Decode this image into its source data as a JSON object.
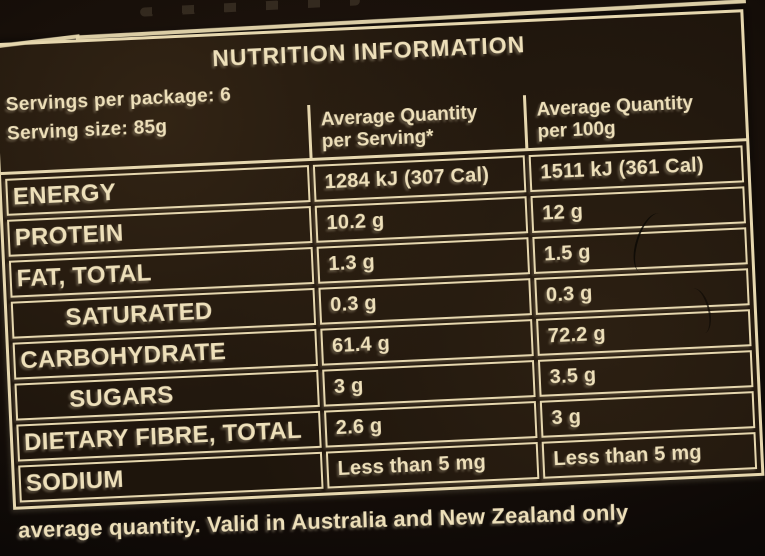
{
  "nutrition_label": {
    "title": "NUTRITION INFORMATION",
    "servings_per_package": "Servings per package: 6",
    "serving_size": "Serving size: 85g",
    "column_headers": {
      "per_serving_line1": "Average Quantity",
      "per_serving_line2": "per Serving*",
      "per_100g_line1": "Average Quantity",
      "per_100g_line2": "per 100g"
    },
    "rows": [
      {
        "nutrient": "ENERGY",
        "per_serving": "1284 kJ (307 Cal)",
        "per_100g": "1511 kJ (361 Cal)",
        "indent": false
      },
      {
        "nutrient": "PROTEIN",
        "per_serving": "10.2 g",
        "per_100g": "12 g",
        "indent": false
      },
      {
        "nutrient": "FAT, TOTAL",
        "per_serving": "1.3 g",
        "per_100g": "1.5 g",
        "indent": false
      },
      {
        "nutrient": "SATURATED",
        "per_serving": "0.3 g",
        "per_100g": "0.3 g",
        "indent": true
      },
      {
        "nutrient": "CARBOHYDRATE",
        "per_serving": "61.4 g",
        "per_100g": "72.2 g",
        "indent": false
      },
      {
        "nutrient": "SUGARS",
        "per_serving": "3 g",
        "per_100g": "3.5 g",
        "indent": true
      },
      {
        "nutrient": "DIETARY FIBRE, TOTAL",
        "per_serving": "2.6 g",
        "per_100g": "3 g",
        "indent": false
      },
      {
        "nutrient": "SODIUM",
        "per_serving": "Less than 5 mg",
        "per_100g": "Less than 5 mg",
        "indent": false
      }
    ],
    "footnote": "average quantity. Valid in Australia and New Zealand only",
    "colors": {
      "text": "#eee0ba",
      "lines": "#e6d7ae",
      "panel_background": "#1e150c",
      "photo_background": "#0a0705"
    }
  }
}
